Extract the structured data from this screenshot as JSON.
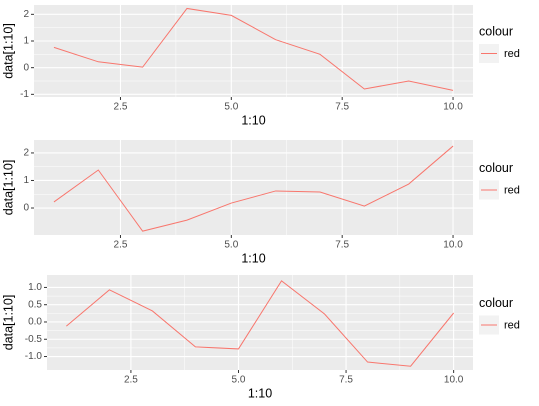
{
  "chart_data": [
    {
      "type": "line",
      "xlabel": "1:10",
      "ylabel": "data[1:10]",
      "legend_title": "colour",
      "grid": true,
      "x": [
        1,
        2,
        3,
        4,
        5,
        6,
        7,
        8,
        9,
        10
      ],
      "series": [
        {
          "name": "red",
          "color": "#F8766D",
          "values": [
            0.76,
            0.22,
            0.02,
            2.22,
            1.96,
            1.05,
            0.5,
            -0.8,
            -0.5,
            -0.85
          ]
        }
      ],
      "xlim": [
        0.55,
        10.45
      ],
      "xticks": [
        2.5,
        {
          "value": 5,
          "label": "5.0"
        },
        7.5,
        {
          "value": 10,
          "label": "10.0"
        }
      ],
      "ylim": [
        -1.1,
        2.35
      ],
      "yticks": [
        -1,
        0,
        1,
        2
      ]
    },
    {
      "type": "line",
      "xlabel": "1:10",
      "ylabel": "data[1:10]",
      "legend_title": "colour",
      "grid": true,
      "x": [
        1,
        2,
        3,
        4,
        5,
        6,
        7,
        8,
        9,
        10
      ],
      "series": [
        {
          "name": "red",
          "color": "#F8766D",
          "values": [
            0.22,
            1.38,
            -0.84,
            -0.44,
            0.18,
            0.62,
            0.58,
            0.07,
            0.87,
            2.25
          ]
        }
      ],
      "xlim": [
        0.55,
        10.45
      ],
      "xticks": [
        2.5,
        {
          "value": 5,
          "label": "5.0"
        },
        7.5,
        {
          "value": 10,
          "label": "10.0"
        }
      ],
      "ylim": [
        -0.98,
        2.47
      ],
      "yticks": [
        0,
        1,
        2
      ]
    },
    {
      "type": "line",
      "xlabel": "1:10",
      "ylabel": "data[1:10]",
      "legend_title": "colour",
      "grid": true,
      "x": [
        1,
        2,
        3,
        4,
        5,
        6,
        7,
        8,
        9,
        10
      ],
      "series": [
        {
          "name": "red",
          "color": "#F8766D",
          "values": [
            -0.12,
            0.93,
            0.32,
            -0.72,
            -0.78,
            1.19,
            0.23,
            -1.16,
            -1.28,
            0.26
          ]
        }
      ],
      "xlim": [
        0.55,
        10.45
      ],
      "xticks": [
        2.5,
        {
          "value": 5,
          "label": "5.0"
        },
        7.5,
        {
          "value": 10,
          "label": "10.0"
        }
      ],
      "ylim": [
        -1.39,
        1.36
      ],
      "yticks": [
        {
          "value": -1,
          "label": "-1.0"
        },
        -0.5,
        {
          "value": 0,
          "label": "0.0"
        },
        0.5,
        {
          "value": 1,
          "label": "1.0"
        }
      ]
    }
  ]
}
